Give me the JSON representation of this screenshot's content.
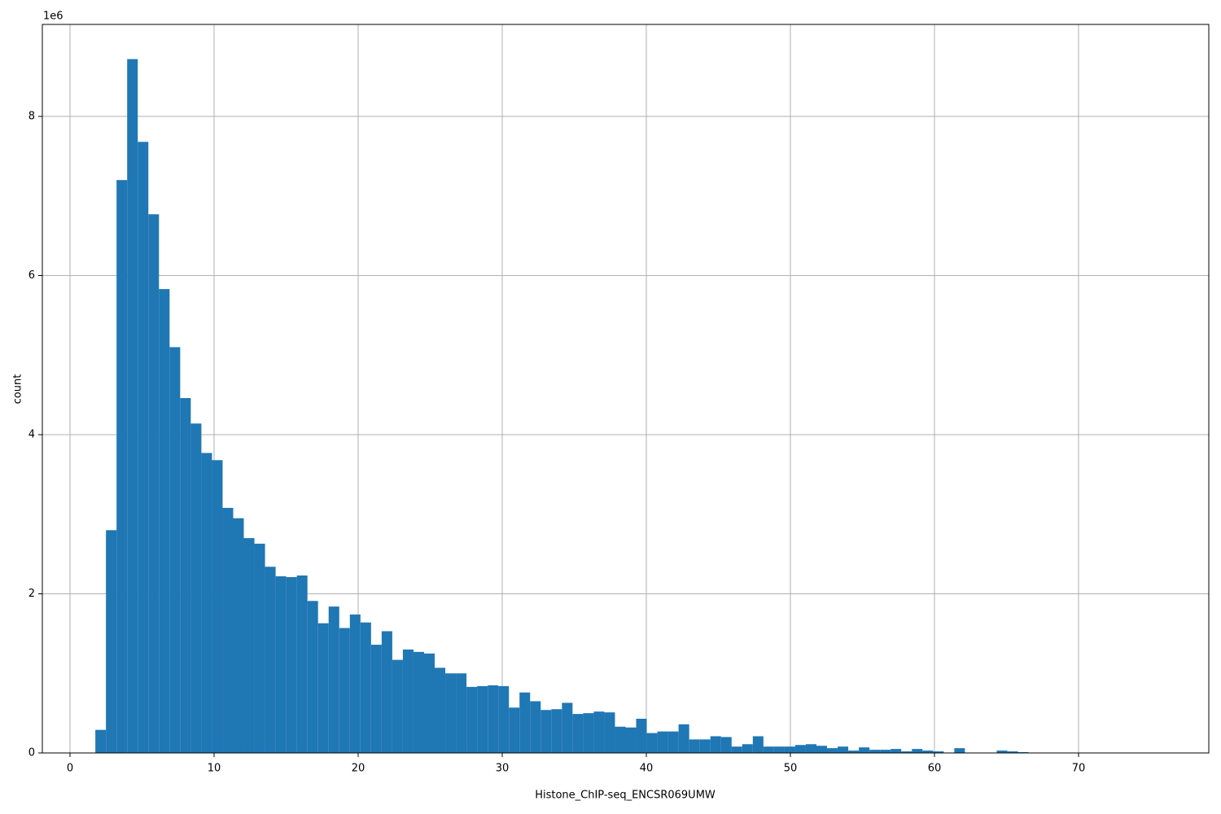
{
  "chart_data": {
    "type": "histogram",
    "x_label": "Histone_ChIP-seq_ENCSR069UMW",
    "y_label": "count",
    "y_offset_label": "1e6",
    "color": "#1f77b4",
    "grid": true,
    "bins": [
      1.76,
      2.496,
      3.232,
      3.968,
      4.704,
      5.44,
      6.176,
      6.912,
      7.648,
      8.384,
      9.12,
      9.856,
      10.592,
      11.328,
      12.064,
      12.8,
      13.536,
      14.272,
      15.008,
      15.744,
      16.48,
      17.216,
      17.952,
      18.688,
      19.424,
      20.16,
      20.896,
      21.632,
      22.368,
      23.104,
      23.84,
      24.576,
      25.312,
      26.048,
      26.784,
      27.52,
      28.256,
      28.992,
      29.728,
      30.464,
      31.2,
      31.936,
      32.672,
      33.408,
      34.144,
      34.88,
      35.616,
      36.352,
      37.088,
      37.824,
      38.56,
      39.296,
      40.032,
      40.768,
      41.504,
      42.24,
      42.976,
      43.712,
      44.448,
      45.184,
      45.92,
      46.656,
      47.392,
      48.128,
      48.864,
      49.6,
      50.336,
      51.072,
      51.808,
      52.544,
      53.28,
      54.016,
      54.752,
      55.488,
      56.224,
      56.96,
      57.696,
      58.432,
      59.168,
      59.904,
      60.64,
      61.376,
      62.112,
      62.848,
      63.584,
      64.32,
      65.056,
      65.792,
      66.528,
      67.264,
      68.0,
      68.736,
      69.472,
      70.208,
      70.944,
      71.68,
      72.416,
      73.152,
      73.888,
      74.624,
      75.36
    ],
    "values": [
      290000,
      2800000,
      7200000,
      8720000,
      7680000,
      6770000,
      5830000,
      5100000,
      4460000,
      4140000,
      3770000,
      3680000,
      3080000,
      2950000,
      2700000,
      2630000,
      2340000,
      2220000,
      2210000,
      2230000,
      1910000,
      1630000,
      1840000,
      1570000,
      1740000,
      1640000,
      1360000,
      1530000,
      1170000,
      1300000,
      1270000,
      1250000,
      1070000,
      1000000,
      1000000,
      830000,
      840000,
      850000,
      840000,
      570000,
      760000,
      650000,
      540000,
      550000,
      630000,
      490000,
      500000,
      520000,
      510000,
      330000,
      320000,
      430000,
      250000,
      270000,
      270000,
      360000,
      170000,
      170000,
      210000,
      200000,
      80000,
      110000,
      210000,
      80000,
      80000,
      80000,
      100000,
      110000,
      90000,
      60000,
      80000,
      30000,
      70000,
      40000,
      40000,
      50000,
      20000,
      50000,
      30000,
      20000,
      0,
      60000,
      0,
      0,
      0,
      30000,
      20000,
      10000,
      0,
      0,
      0,
      0,
      0,
      0,
      0,
      0,
      0,
      0,
      0,
      0
    ],
    "xlim": [
      -1.92,
      79.04
    ],
    "xticks": [
      0,
      10,
      20,
      30,
      40,
      50,
      60,
      70
    ],
    "ylim": [
      0,
      9156000
    ],
    "yticks": [
      0,
      {
        "value": 2000000,
        "label": "2"
      },
      {
        "value": 4000000,
        "label": "4"
      },
      {
        "value": 6000000,
        "label": "6"
      },
      {
        "value": 8000000,
        "label": "8"
      }
    ]
  }
}
